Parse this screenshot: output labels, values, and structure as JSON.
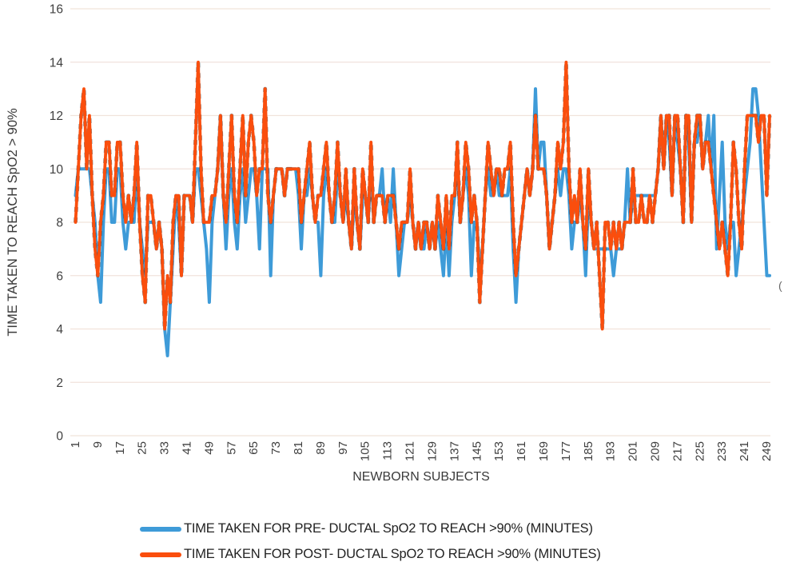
{
  "chart_data": {
    "type": "line",
    "title": "",
    "x_axis": {
      "label": "NEWBORN SUBJECTS",
      "tick_labels": [
        1,
        9,
        17,
        25,
        33,
        41,
        49,
        57,
        65,
        73,
        81,
        89,
        97,
        105,
        113,
        121,
        129,
        137,
        145,
        153,
        161,
        169,
        177,
        185,
        193,
        201,
        209,
        217,
        225,
        233,
        241,
        249
      ],
      "num_points": 250
    },
    "y_axis": {
      "label": "TIME TAKEN TO REACH SpO2 > 90%",
      "ticks": [
        0,
        2,
        4,
        6,
        8,
        10,
        12,
        14,
        16
      ],
      "range": [
        0,
        16
      ]
    },
    "grid": true,
    "legend_position": "bottom",
    "colors": {
      "pre_ductal": "#3E9BD8",
      "post_ductal": "#FA4E0D",
      "gridline": "#F1E3DB",
      "tick_text": "#3F3F3F",
      "axis_title_text": "#3A3A3A",
      "overlap_dash": "#222222"
    },
    "series": [
      {
        "name": "TIME TAKEN FOR PRE- DUCTAL SpO2 TO REACH >90% (MINUTES)",
        "color": "#3E9BD8",
        "values": [
          9,
          10,
          10,
          10,
          10,
          10,
          9,
          8,
          6,
          5,
          8,
          10,
          10,
          8,
          8,
          10,
          10,
          8,
          7,
          8,
          8,
          8,
          10,
          8,
          7,
          6,
          8,
          8,
          8,
          7,
          8,
          7,
          4,
          3,
          5,
          7,
          9,
          8,
          6,
          9,
          9,
          9,
          8,
          10,
          10,
          9,
          8,
          7,
          5,
          8,
          9,
          10,
          12,
          9,
          7,
          9,
          10,
          8,
          7,
          9,
          10,
          8,
          9,
          10,
          10,
          9,
          7,
          10,
          10,
          10,
          6,
          9,
          10,
          10,
          10,
          9,
          10,
          10,
          10,
          10,
          9,
          7,
          9,
          9,
          10,
          9,
          8,
          8,
          6,
          9,
          10,
          9,
          8,
          8,
          10,
          9,
          8,
          9,
          8,
          7,
          9,
          8,
          7,
          9,
          9,
          8,
          10,
          8,
          9,
          9,
          10,
          8,
          9,
          8,
          10,
          8,
          6,
          7,
          8,
          8,
          9,
          8,
          7,
          8,
          7,
          7,
          8,
          7,
          8,
          7,
          8,
          7,
          6,
          8,
          6,
          8,
          9,
          10,
          8,
          9,
          10,
          9,
          6,
          8,
          8,
          6,
          7,
          9,
          10,
          9,
          9,
          10,
          9,
          9,
          9,
          9,
          10,
          7,
          5,
          7,
          8,
          9,
          10,
          9,
          10,
          13,
          10,
          11,
          11,
          9,
          7,
          8,
          9,
          10,
          9,
          10,
          10,
          9,
          7,
          8,
          8,
          9,
          8,
          6,
          9,
          8,
          7,
          7,
          7,
          7,
          7,
          7,
          7,
          6,
          7,
          7,
          7,
          8,
          10,
          8,
          9,
          9,
          9,
          9,
          9,
          9,
          9,
          9,
          9,
          10,
          12,
          10,
          12,
          11,
          9,
          12,
          11,
          10,
          8,
          12,
          11,
          8,
          11,
          11,
          12,
          10,
          11,
          12,
          10,
          12,
          7,
          9,
          11,
          8,
          7,
          8,
          8,
          6,
          7,
          8,
          9,
          10,
          11,
          13,
          13,
          12,
          10,
          8,
          6,
          6
        ]
      },
      {
        "name": "TIME TAKEN FOR POST- DUCTAL SpO2 TO REACH >90% (MINUTES)",
        "color": "#FA4E0D",
        "values": [
          8,
          10,
          12,
          13,
          10,
          12,
          9,
          7,
          6,
          8,
          9,
          11,
          11,
          9,
          9,
          11,
          11,
          9,
          8,
          9,
          8,
          9,
          11,
          8,
          6,
          5,
          9,
          9,
          8,
          7,
          8,
          7,
          4,
          6,
          5,
          8,
          9,
          9,
          6,
          9,
          9,
          9,
          8,
          11,
          14,
          10,
          8,
          8,
          8,
          9,
          9,
          10,
          12,
          9,
          8,
          10,
          12,
          9,
          8,
          10,
          12,
          9,
          11,
          12,
          11,
          9,
          10,
          10,
          13,
          9,
          8,
          9,
          10,
          10,
          10,
          9,
          10,
          10,
          10,
          10,
          10,
          8,
          9,
          10,
          11,
          9,
          8,
          9,
          9,
          10,
          11,
          9,
          8,
          9,
          11,
          9,
          8,
          10,
          8,
          7,
          10,
          8,
          7,
          10,
          9,
          8,
          11,
          8,
          9,
          9,
          9,
          8,
          9,
          9,
          9,
          8,
          7,
          8,
          8,
          8,
          10,
          8,
          7,
          8,
          7,
          8,
          8,
          7,
          8,
          7,
          9,
          8,
          7,
          9,
          7,
          9,
          9,
          11,
          8,
          9,
          11,
          10,
          8,
          9,
          8,
          5,
          7,
          9,
          11,
          10,
          9,
          10,
          10,
          9,
          10,
          10,
          11,
          8,
          6,
          7,
          8,
          9,
          10,
          9,
          10,
          12,
          10,
          10,
          10,
          9,
          7,
          8,
          9,
          11,
          10,
          11,
          14,
          10,
          8,
          9,
          8,
          10,
          8,
          7,
          10,
          8,
          7,
          8,
          6,
          4,
          8,
          8,
          7,
          8,
          7,
          8,
          7,
          8,
          8,
          8,
          10,
          8,
          8,
          9,
          8,
          8,
          9,
          8,
          9,
          10,
          12,
          10,
          12,
          12,
          9,
          12,
          12,
          10,
          8,
          12,
          12,
          8,
          11,
          12,
          12,
          10,
          11,
          11,
          10,
          9,
          8,
          7,
          8,
          7,
          6,
          8,
          11,
          10,
          8,
          7,
          10,
          12,
          12,
          12,
          12,
          11,
          12,
          12,
          9,
          12
        ]
      }
    ],
    "stray_mark": "("
  }
}
